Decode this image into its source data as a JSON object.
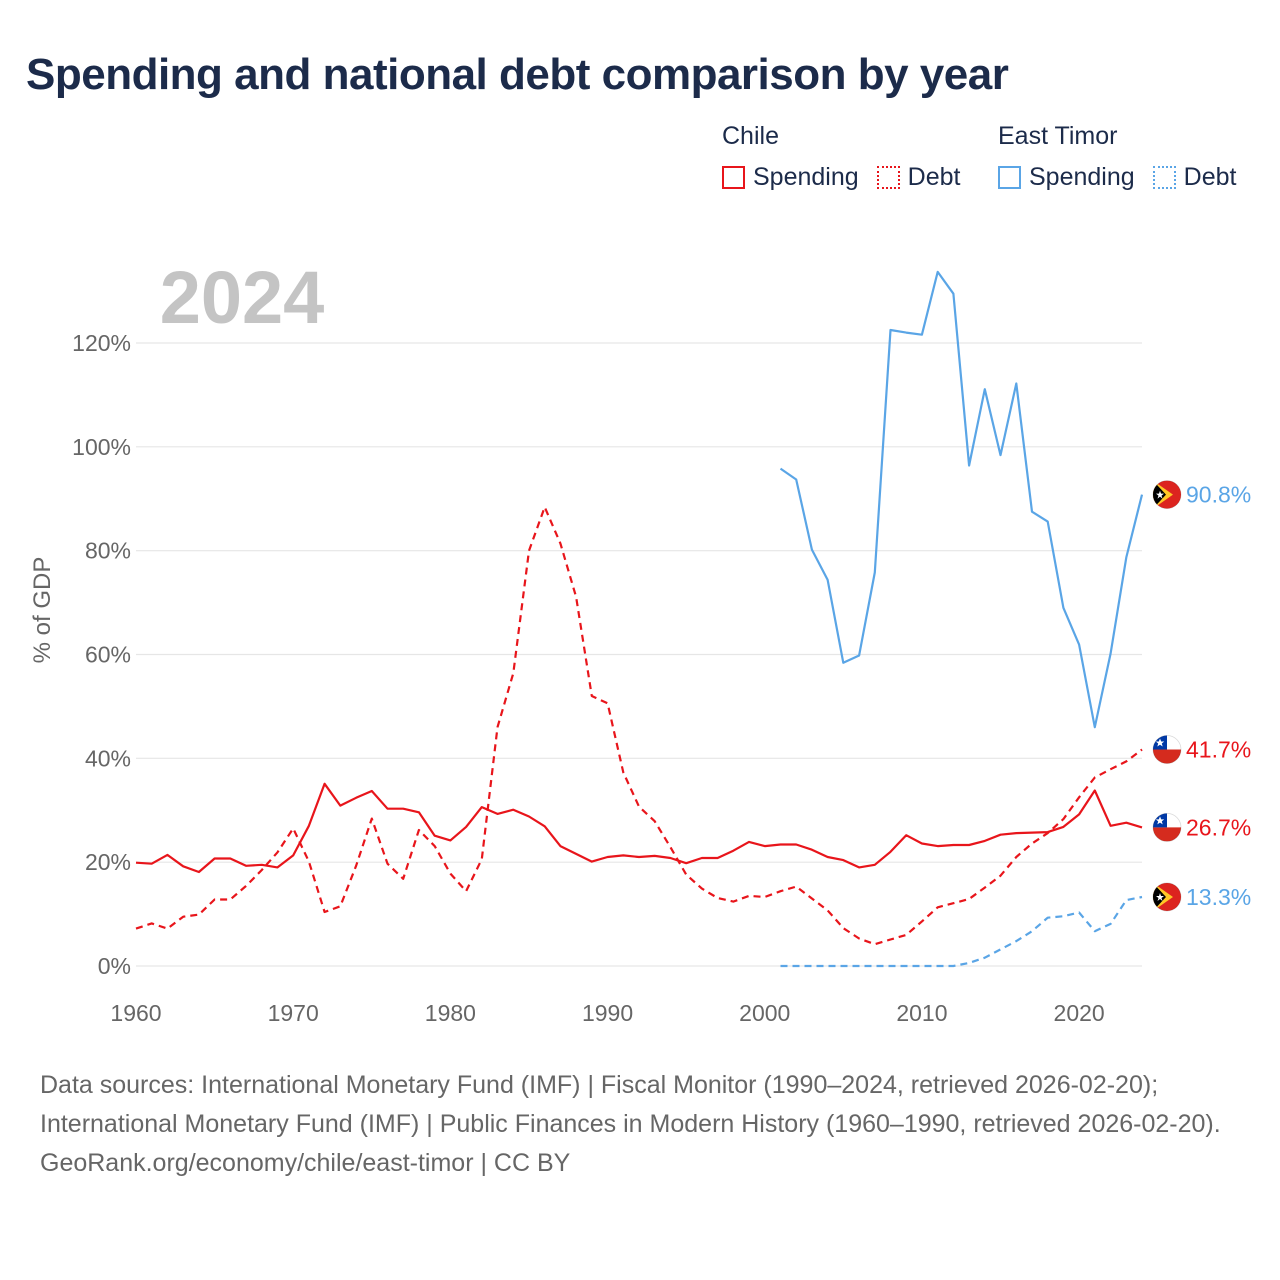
{
  "title": "Spending and national debt comparison by year",
  "legend": {
    "groups": [
      {
        "name": "Chile",
        "color": "#e8151b",
        "items": [
          {
            "label": "Spending",
            "style": "solid"
          },
          {
            "label": "Debt",
            "style": "dotted"
          }
        ]
      },
      {
        "name": "East Timor",
        "color": "#5aa5e6",
        "items": [
          {
            "label": "Spending",
            "style": "solid"
          },
          {
            "label": "Debt",
            "style": "dotted"
          }
        ]
      }
    ]
  },
  "colors": {
    "chile": "#e8151b",
    "east_timor": "#5aa5e6",
    "grid": "#e6e6e6",
    "axis_text": "#666666",
    "year_label": "#c4c4c4",
    "title": "#1c2b4a"
  },
  "chart_data": {
    "type": "line",
    "title": "Spending and national debt comparison by year",
    "year_label": "2024",
    "xlabel": "",
    "ylabel": "% of GDP",
    "xlim": [
      1960,
      2024
    ],
    "ylim": [
      0,
      120
    ],
    "x_ticks": [
      1960,
      1970,
      1980,
      1990,
      2000,
      2010,
      2020
    ],
    "y_ticks": [
      0,
      20,
      40,
      60,
      80,
      100,
      120
    ],
    "y_tick_labels": [
      "0%",
      "20%",
      "40%",
      "60%",
      "80%",
      "100%",
      "120%"
    ],
    "series": [
      {
        "name": "Chile Spending",
        "country": "Chile",
        "color": "#e8151b",
        "dash": "solid",
        "x": [
          1960,
          1961,
          1962,
          1963,
          1964,
          1965,
          1966,
          1967,
          1968,
          1969,
          1970,
          1971,
          1972,
          1973,
          1974,
          1975,
          1976,
          1977,
          1978,
          1979,
          1980,
          1981,
          1982,
          1983,
          1984,
          1985,
          1986,
          1987,
          1988,
          1989,
          1990,
          1991,
          1992,
          1993,
          1994,
          1995,
          1996,
          1997,
          1998,
          1999,
          2000,
          2001,
          2002,
          2003,
          2004,
          2005,
          2006,
          2007,
          2008,
          2009,
          2010,
          2011,
          2012,
          2013,
          2014,
          2015,
          2016,
          2017,
          2018,
          2019,
          2020,
          2021,
          2022,
          2023,
          2024
        ],
        "values": [
          19.9,
          19.7,
          21.4,
          19.2,
          18.1,
          20.7,
          20.7,
          19.3,
          19.5,
          19.0,
          21.3,
          27.0,
          35.1,
          30.9,
          32.4,
          33.7,
          30.3,
          30.3,
          29.6,
          25.1,
          24.2,
          26.8,
          30.6,
          29.3,
          30.1,
          28.8,
          26.9,
          23.1,
          21.6,
          20.1,
          21.0,
          21.3,
          21.0,
          21.2,
          20.8,
          19.8,
          20.8,
          20.8,
          22.2,
          23.9,
          23.1,
          23.4,
          23.4,
          22.4,
          21.0,
          20.4,
          19.0,
          19.5,
          22.0,
          25.2,
          23.6,
          23.1,
          23.3,
          23.3,
          24.1,
          25.3,
          25.6,
          25.7,
          25.8,
          26.8,
          29.2,
          33.8,
          27.0,
          27.6,
          26.7
        ],
        "end_label": "26.7%"
      },
      {
        "name": "Chile Debt",
        "country": "Chile",
        "color": "#e8151b",
        "dash": "dashed",
        "x": [
          1960,
          1961,
          1962,
          1963,
          1964,
          1965,
          1966,
          1967,
          1968,
          1969,
          1970,
          1971,
          1972,
          1973,
          1974,
          1975,
          1976,
          1977,
          1978,
          1979,
          1980,
          1981,
          1982,
          1983,
          1984,
          1985,
          1986,
          1987,
          1988,
          1989,
          1990,
          1991,
          1992,
          1993,
          1994,
          1995,
          1996,
          1997,
          1998,
          1999,
          2000,
          2001,
          2002,
          2003,
          2004,
          2005,
          2006,
          2007,
          2008,
          2009,
          2010,
          2011,
          2012,
          2013,
          2014,
          2015,
          2016,
          2017,
          2018,
          2019,
          2020,
          2021,
          2022,
          2023,
          2024
        ],
        "values": [
          7.2,
          8.2,
          7.2,
          9.5,
          9.9,
          12.8,
          12.8,
          15.4,
          18.5,
          21.9,
          26.5,
          20.1,
          10.4,
          11.5,
          19.3,
          28.4,
          19.7,
          16.8,
          26.2,
          23.1,
          17.8,
          14.4,
          20.6,
          46.0,
          56.4,
          80.0,
          88.4,
          81.4,
          71.1,
          52.0,
          50.6,
          37.3,
          30.7,
          27.9,
          22.9,
          17.6,
          14.9,
          13.1,
          12.4,
          13.5,
          13.3,
          14.4,
          15.3,
          13.0,
          10.7,
          7.3,
          5.3,
          4.2,
          5.1,
          6.0,
          8.6,
          11.3,
          12.1,
          12.9,
          15.1,
          17.4,
          21.0,
          23.6,
          25.6,
          28.3,
          32.5,
          36.3,
          37.9,
          39.4,
          41.7
        ],
        "end_label": "41.7%"
      },
      {
        "name": "East Timor Spending",
        "country": "East Timor",
        "color": "#5aa5e6",
        "dash": "solid",
        "x": [
          2001,
          2002,
          2003,
          2004,
          2005,
          2006,
          2007,
          2008,
          2009,
          2010,
          2011,
          2012,
          2013,
          2014,
          2015,
          2016,
          2017,
          2018,
          2019,
          2020,
          2021,
          2022,
          2023,
          2024
        ],
        "values": [
          95.8,
          93.7,
          80.2,
          74.4,
          58.4,
          59.8,
          75.8,
          122.5,
          122.0,
          121.6,
          133.7,
          129.5,
          96.4,
          111.1,
          98.4,
          112.2,
          87.5,
          85.6,
          69.0,
          61.9,
          46.0,
          60.2,
          78.7,
          90.8
        ],
        "end_label": "90.8%"
      },
      {
        "name": "East Timor Debt",
        "country": "East Timor",
        "color": "#5aa5e6",
        "dash": "dashed",
        "x": [
          2001,
          2002,
          2003,
          2004,
          2005,
          2006,
          2007,
          2008,
          2009,
          2010,
          2011,
          2012,
          2013,
          2014,
          2015,
          2016,
          2017,
          2018,
          2019,
          2020,
          2021,
          2022,
          2023,
          2024
        ],
        "values": [
          0,
          0,
          0,
          0,
          0,
          0,
          0,
          0,
          0,
          0,
          0,
          0,
          0.6,
          1.6,
          3.2,
          4.8,
          6.7,
          9.3,
          9.6,
          10.3,
          6.7,
          8.1,
          12.7,
          13.3
        ],
        "end_label": "13.3%"
      }
    ]
  },
  "source": {
    "line1": "Data sources: International Monetary Fund (IMF) | Fiscal Monitor (1990–2024, retrieved 2026-02-20); International Monetary Fund (IMF) | Public Finances in Modern History (1960–1990, retrieved 2026-02-20).",
    "line2": "GeoRank.org/economy/chile/east-timor | CC BY"
  }
}
